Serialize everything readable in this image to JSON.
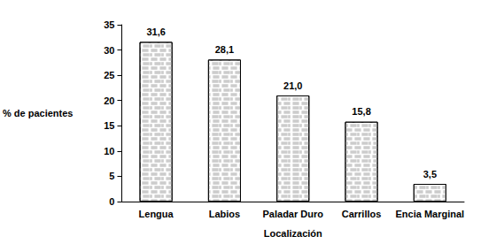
{
  "chart_data": {
    "type": "bar",
    "categories": [
      "Lengua",
      "Labios",
      "Paladar Duro",
      "Carrillos",
      "Encia Marginal"
    ],
    "values": [
      31.6,
      28.1,
      21.0,
      15.8,
      3.5
    ],
    "value_labels": [
      "31,6",
      "28,1",
      "21,0",
      "15,8",
      "3,5"
    ],
    "data_labels": true,
    "color": "#ffffff",
    "x_label": "Localización",
    "y_label": "% de pacientes",
    "ylim": [
      0,
      35
    ],
    "yticks": [
      0,
      5,
      10,
      15,
      20,
      25,
      30,
      35
    ],
    "grid": false
  }
}
